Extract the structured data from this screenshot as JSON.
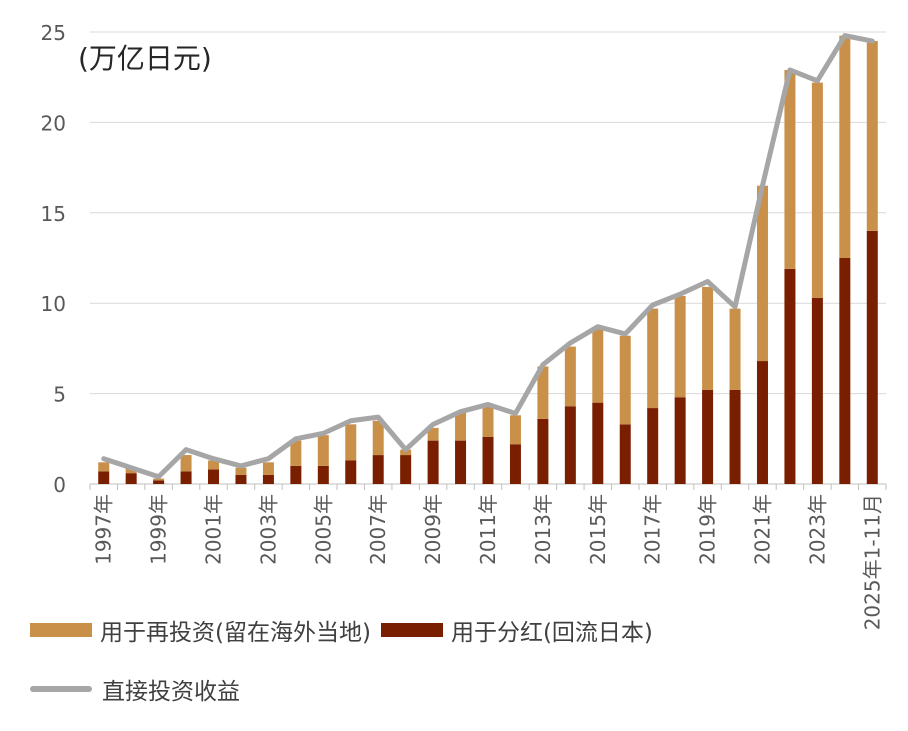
{
  "chart_data": {
    "type": "bar",
    "stacked": true,
    "unit_label": "(万亿日元)",
    "categories": [
      "1997年",
      "1998年",
      "1999年",
      "2000年",
      "2001年",
      "2002年",
      "2003年",
      "2004年",
      "2005年",
      "2006年",
      "2007年",
      "2008年",
      "2009年",
      "2010年",
      "2011年",
      "2012年",
      "2013年",
      "2014年",
      "2015年",
      "2016年",
      "2017年",
      "2018年",
      "2019年",
      "2020年",
      "2021年",
      "2022年",
      "2023年",
      "2024年",
      "2025年1-11月"
    ],
    "tick_labels": [
      "1997年",
      "1999年",
      "2001年",
      "2003年",
      "2005年",
      "2007年",
      "2009年",
      "2011年",
      "2013年",
      "2015年",
      "2017年",
      "2019年",
      "2021年",
      "2023年",
      "2025年1-11月"
    ],
    "ylim": [
      0,
      25
    ],
    "yticks": [
      0,
      5,
      10,
      15,
      20,
      25
    ],
    "grid": true,
    "legend_position": "bottom",
    "series": [
      {
        "name": "用于分红(回流日本)",
        "kind": "bar",
        "color": "#7a1e00",
        "values": [
          0.7,
          0.6,
          0.2,
          0.7,
          0.8,
          0.5,
          0.5,
          1.0,
          1.0,
          1.3,
          1.6,
          1.6,
          2.4,
          2.4,
          2.6,
          2.2,
          3.6,
          4.3,
          4.5,
          3.3,
          4.2,
          4.8,
          5.2,
          5.2,
          6.8,
          11.9,
          10.3,
          12.5,
          14.0
        ]
      },
      {
        "name": "用于再投资(留在海外当地)",
        "kind": "bar",
        "color": "#c9904a",
        "values": [
          0.5,
          0.3,
          0.1,
          0.9,
          0.5,
          0.4,
          0.7,
          1.4,
          1.7,
          2.0,
          1.9,
          0.3,
          0.7,
          1.6,
          1.7,
          1.6,
          2.9,
          3.3,
          4.1,
          4.9,
          5.5,
          5.6,
          5.7,
          4.5,
          9.7,
          11.0,
          11.9,
          12.3,
          10.5
        ]
      },
      {
        "name": "直接投资收益",
        "kind": "line",
        "color": "#a6a6a6",
        "values": [
          1.4,
          0.9,
          0.4,
          1.9,
          1.4,
          1.0,
          1.4,
          2.5,
          2.8,
          3.5,
          3.7,
          1.9,
          3.3,
          4.0,
          4.4,
          3.9,
          6.6,
          7.8,
          8.7,
          8.3,
          9.9,
          10.5,
          11.2,
          9.8,
          16.5,
          22.9,
          22.3,
          24.8,
          24.5
        ]
      }
    ]
  },
  "legend": {
    "reinvest": "用于再投资(留在海外当地)",
    "dividend": "用于分红(回流日本)",
    "income": "直接投资收益"
  }
}
